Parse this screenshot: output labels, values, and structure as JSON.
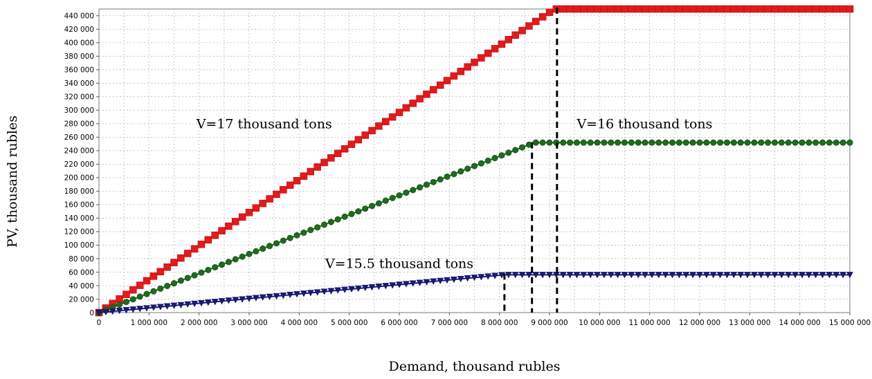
{
  "chart_data": {
    "type": "line",
    "xlabel": "Demand, thousand rubles",
    "ylabel": "PV, thousand rubles",
    "xlim": [
      0,
      15000000
    ],
    "ylim": [
      0,
      450000
    ],
    "grid": true,
    "x_ticks": [
      {
        "value": 0,
        "label": "0"
      },
      {
        "value": 1000000,
        "label": "1 000 000"
      },
      {
        "value": 2000000,
        "label": "2 000 000"
      },
      {
        "value": 3000000,
        "label": "3 000 000"
      },
      {
        "value": 4000000,
        "label": "4 000 000"
      },
      {
        "value": 5000000,
        "label": "5 000 000"
      },
      {
        "value": 6000000,
        "label": "6 000 000"
      },
      {
        "value": 7000000,
        "label": "7 000 000"
      },
      {
        "value": 8000000,
        "label": "8 000 000"
      },
      {
        "value": 9000000,
        "label": "9 000 000"
      },
      {
        "value": 10000000,
        "label": "10 000 000"
      },
      {
        "value": 11000000,
        "label": "11 000 000"
      },
      {
        "value": 12000000,
        "label": "12 000 000"
      },
      {
        "value": 13000000,
        "label": "13 000 000"
      },
      {
        "value": 14000000,
        "label": "14 000 000"
      },
      {
        "value": 15000000,
        "label": "15 000 000"
      }
    ],
    "y_ticks": [
      {
        "value": 0,
        "label": "0"
      },
      {
        "value": 20000,
        "label": "20 000"
      },
      {
        "value": 40000,
        "label": "40 000"
      },
      {
        "value": 60000,
        "label": "60 000"
      },
      {
        "value": 80000,
        "label": "80 000"
      },
      {
        "value": 100000,
        "label": "100 000"
      },
      {
        "value": 120000,
        "label": "120 000"
      },
      {
        "value": 140000,
        "label": "140 000"
      },
      {
        "value": 160000,
        "label": "160 000"
      },
      {
        "value": 180000,
        "label": "180 000"
      },
      {
        "value": 200000,
        "label": "200 000"
      },
      {
        "value": 220000,
        "label": "220 000"
      },
      {
        "value": 240000,
        "label": "240 000"
      },
      {
        "value": 260000,
        "label": "260 000"
      },
      {
        "value": 280000,
        "label": "280 000"
      },
      {
        "value": 300000,
        "label": "300 000"
      },
      {
        "value": 320000,
        "label": "320 000"
      },
      {
        "value": 340000,
        "label": "340 000"
      },
      {
        "value": 360000,
        "label": "360 000"
      },
      {
        "value": 380000,
        "label": "380 000"
      },
      {
        "value": 400000,
        "label": "400 000"
      },
      {
        "value": 420000,
        "label": "420 000"
      },
      {
        "value": 440000,
        "label": "440 000"
      }
    ],
    "series": [
      {
        "color": "#e01b1b",
        "marker": "square",
        "points": [
          [
            0,
            0
          ],
          [
            9100000,
            450000
          ],
          [
            15000000,
            450000
          ]
        ],
        "breakpoint_x": 9150000
      },
      {
        "color": "#1f6b1f",
        "marker": "circle",
        "points": [
          [
            0,
            0
          ],
          [
            8700000,
            252000
          ],
          [
            15000000,
            252000
          ]
        ],
        "breakpoint_x": 8650000
      },
      {
        "color": "#1a1a7a",
        "marker": "triangle-down",
        "points": [
          [
            0,
            0
          ],
          [
            8100000,
            56000
          ],
          [
            15000000,
            56000
          ]
        ],
        "breakpoint_x": 8100000
      }
    ],
    "annotations": [
      {
        "text": "V=17 thousand tons",
        "x": 3300000,
        "y": 273000
      },
      {
        "text": "V=16 thousand tons",
        "x": 10900000,
        "y": 273000
      },
      {
        "text": "V=15.5 thousand tons",
        "x": 6000000,
        "y": 66000
      }
    ]
  }
}
